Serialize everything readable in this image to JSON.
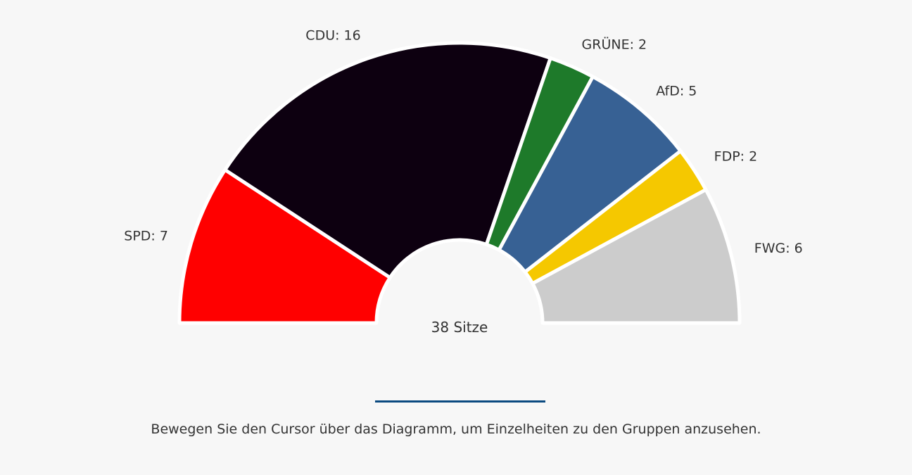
{
  "chart_data": {
    "type": "pie",
    "variant": "semicircle-parliament",
    "total_label": "38 Sitze",
    "categories": [
      "SPD",
      "CDU",
      "GRÜNE",
      "AfD",
      "FDP",
      "FWG"
    ],
    "values": [
      7,
      16,
      2,
      5,
      2,
      6
    ],
    "labels": [
      "SPD: 7",
      "CDU: 16",
      "GRÜNE: 2",
      "AfD: 5",
      "FDP: 2",
      "FWG: 6"
    ],
    "colors": [
      "#ff0000",
      "#0d0010",
      "#1e7a2a",
      "#376194",
      "#f5c800",
      "#cccccc"
    ]
  },
  "hint": "Bewegen Sie den Cursor über das Diagramm, um Einzelheiten zu den Gruppen anzusehen."
}
